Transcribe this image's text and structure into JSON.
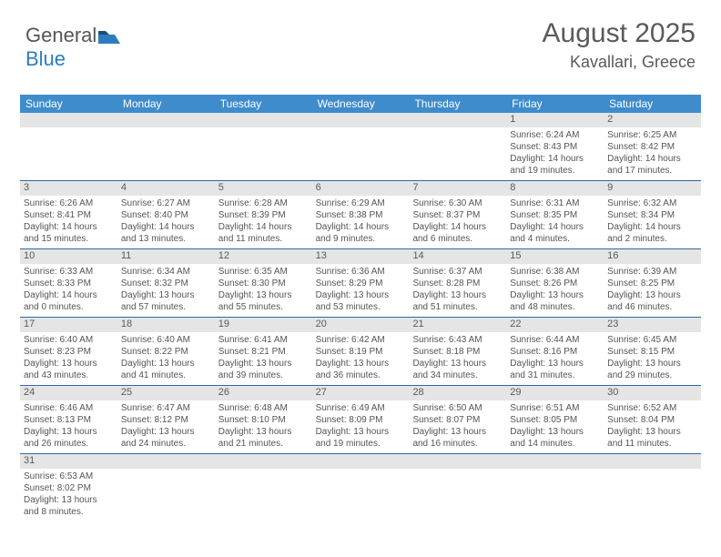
{
  "logo": {
    "word1": "General",
    "word2": "Blue"
  },
  "header": {
    "title": "August 2025",
    "location": "Kavallari, Greece"
  },
  "colors": {
    "header_bg": "#3e8ccc",
    "daynum_bg": "#e5e5e5",
    "week_border": "#2d6aa0",
    "text": "#555555",
    "logo_blue": "#2d7cc0"
  },
  "weekdays": [
    "Sunday",
    "Monday",
    "Tuesday",
    "Wednesday",
    "Thursday",
    "Friday",
    "Saturday"
  ],
  "weeks": [
    [
      {
        "empty": true
      },
      {
        "empty": true
      },
      {
        "empty": true
      },
      {
        "empty": true
      },
      {
        "empty": true
      },
      {
        "num": "1",
        "sunrise": "Sunrise: 6:24 AM",
        "sunset": "Sunset: 8:43 PM",
        "day1": "Daylight: 14 hours",
        "day2": "and 19 minutes."
      },
      {
        "num": "2",
        "sunrise": "Sunrise: 6:25 AM",
        "sunset": "Sunset: 8:42 PM",
        "day1": "Daylight: 14 hours",
        "day2": "and 17 minutes."
      }
    ],
    [
      {
        "num": "3",
        "sunrise": "Sunrise: 6:26 AM",
        "sunset": "Sunset: 8:41 PM",
        "day1": "Daylight: 14 hours",
        "day2": "and 15 minutes."
      },
      {
        "num": "4",
        "sunrise": "Sunrise: 6:27 AM",
        "sunset": "Sunset: 8:40 PM",
        "day1": "Daylight: 14 hours",
        "day2": "and 13 minutes."
      },
      {
        "num": "5",
        "sunrise": "Sunrise: 6:28 AM",
        "sunset": "Sunset: 8:39 PM",
        "day1": "Daylight: 14 hours",
        "day2": "and 11 minutes."
      },
      {
        "num": "6",
        "sunrise": "Sunrise: 6:29 AM",
        "sunset": "Sunset: 8:38 PM",
        "day1": "Daylight: 14 hours",
        "day2": "and 9 minutes."
      },
      {
        "num": "7",
        "sunrise": "Sunrise: 6:30 AM",
        "sunset": "Sunset: 8:37 PM",
        "day1": "Daylight: 14 hours",
        "day2": "and 6 minutes."
      },
      {
        "num": "8",
        "sunrise": "Sunrise: 6:31 AM",
        "sunset": "Sunset: 8:35 PM",
        "day1": "Daylight: 14 hours",
        "day2": "and 4 minutes."
      },
      {
        "num": "9",
        "sunrise": "Sunrise: 6:32 AM",
        "sunset": "Sunset: 8:34 PM",
        "day1": "Daylight: 14 hours",
        "day2": "and 2 minutes."
      }
    ],
    [
      {
        "num": "10",
        "sunrise": "Sunrise: 6:33 AM",
        "sunset": "Sunset: 8:33 PM",
        "day1": "Daylight: 14 hours",
        "day2": "and 0 minutes."
      },
      {
        "num": "11",
        "sunrise": "Sunrise: 6:34 AM",
        "sunset": "Sunset: 8:32 PM",
        "day1": "Daylight: 13 hours",
        "day2": "and 57 minutes."
      },
      {
        "num": "12",
        "sunrise": "Sunrise: 6:35 AM",
        "sunset": "Sunset: 8:30 PM",
        "day1": "Daylight: 13 hours",
        "day2": "and 55 minutes."
      },
      {
        "num": "13",
        "sunrise": "Sunrise: 6:36 AM",
        "sunset": "Sunset: 8:29 PM",
        "day1": "Daylight: 13 hours",
        "day2": "and 53 minutes."
      },
      {
        "num": "14",
        "sunrise": "Sunrise: 6:37 AM",
        "sunset": "Sunset: 8:28 PM",
        "day1": "Daylight: 13 hours",
        "day2": "and 51 minutes."
      },
      {
        "num": "15",
        "sunrise": "Sunrise: 6:38 AM",
        "sunset": "Sunset: 8:26 PM",
        "day1": "Daylight: 13 hours",
        "day2": "and 48 minutes."
      },
      {
        "num": "16",
        "sunrise": "Sunrise: 6:39 AM",
        "sunset": "Sunset: 8:25 PM",
        "day1": "Daylight: 13 hours",
        "day2": "and 46 minutes."
      }
    ],
    [
      {
        "num": "17",
        "sunrise": "Sunrise: 6:40 AM",
        "sunset": "Sunset: 8:23 PM",
        "day1": "Daylight: 13 hours",
        "day2": "and 43 minutes."
      },
      {
        "num": "18",
        "sunrise": "Sunrise: 6:40 AM",
        "sunset": "Sunset: 8:22 PM",
        "day1": "Daylight: 13 hours",
        "day2": "and 41 minutes."
      },
      {
        "num": "19",
        "sunrise": "Sunrise: 6:41 AM",
        "sunset": "Sunset: 8:21 PM",
        "day1": "Daylight: 13 hours",
        "day2": "and 39 minutes."
      },
      {
        "num": "20",
        "sunrise": "Sunrise: 6:42 AM",
        "sunset": "Sunset: 8:19 PM",
        "day1": "Daylight: 13 hours",
        "day2": "and 36 minutes."
      },
      {
        "num": "21",
        "sunrise": "Sunrise: 6:43 AM",
        "sunset": "Sunset: 8:18 PM",
        "day1": "Daylight: 13 hours",
        "day2": "and 34 minutes."
      },
      {
        "num": "22",
        "sunrise": "Sunrise: 6:44 AM",
        "sunset": "Sunset: 8:16 PM",
        "day1": "Daylight: 13 hours",
        "day2": "and 31 minutes."
      },
      {
        "num": "23",
        "sunrise": "Sunrise: 6:45 AM",
        "sunset": "Sunset: 8:15 PM",
        "day1": "Daylight: 13 hours",
        "day2": "and 29 minutes."
      }
    ],
    [
      {
        "num": "24",
        "sunrise": "Sunrise: 6:46 AM",
        "sunset": "Sunset: 8:13 PM",
        "day1": "Daylight: 13 hours",
        "day2": "and 26 minutes."
      },
      {
        "num": "25",
        "sunrise": "Sunrise: 6:47 AM",
        "sunset": "Sunset: 8:12 PM",
        "day1": "Daylight: 13 hours",
        "day2": "and 24 minutes."
      },
      {
        "num": "26",
        "sunrise": "Sunrise: 6:48 AM",
        "sunset": "Sunset: 8:10 PM",
        "day1": "Daylight: 13 hours",
        "day2": "and 21 minutes."
      },
      {
        "num": "27",
        "sunrise": "Sunrise: 6:49 AM",
        "sunset": "Sunset: 8:09 PM",
        "day1": "Daylight: 13 hours",
        "day2": "and 19 minutes."
      },
      {
        "num": "28",
        "sunrise": "Sunrise: 6:50 AM",
        "sunset": "Sunset: 8:07 PM",
        "day1": "Daylight: 13 hours",
        "day2": "and 16 minutes."
      },
      {
        "num": "29",
        "sunrise": "Sunrise: 6:51 AM",
        "sunset": "Sunset: 8:05 PM",
        "day1": "Daylight: 13 hours",
        "day2": "and 14 minutes."
      },
      {
        "num": "30",
        "sunrise": "Sunrise: 6:52 AM",
        "sunset": "Sunset: 8:04 PM",
        "day1": "Daylight: 13 hours",
        "day2": "and 11 minutes."
      }
    ],
    [
      {
        "num": "31",
        "sunrise": "Sunrise: 6:53 AM",
        "sunset": "Sunset: 8:02 PM",
        "day1": "Daylight: 13 hours",
        "day2": "and 8 minutes."
      },
      {
        "empty": true
      },
      {
        "empty": true
      },
      {
        "empty": true
      },
      {
        "empty": true
      },
      {
        "empty": true
      },
      {
        "empty": true
      }
    ]
  ]
}
